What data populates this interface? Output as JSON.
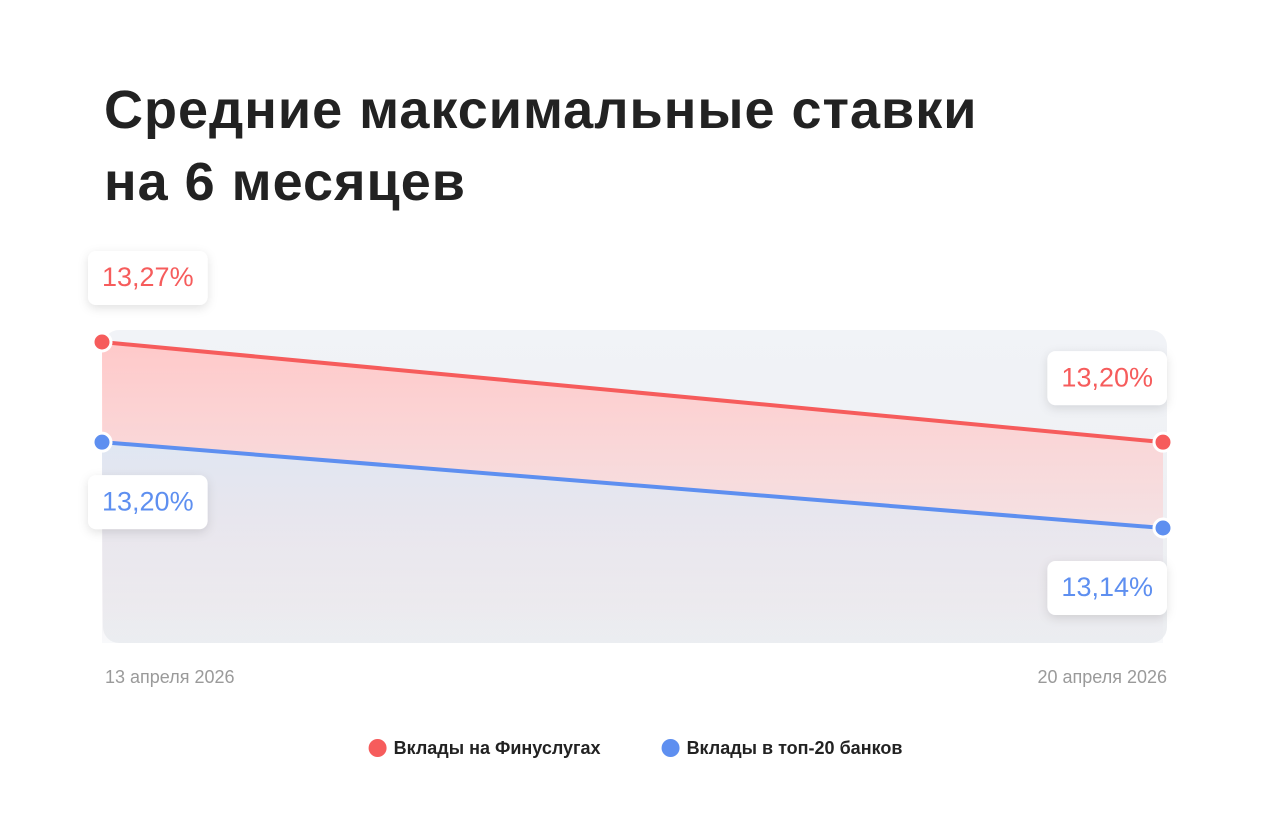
{
  "chart_data": {
    "type": "line",
    "title": "Средние максимальные ставки\nна 6 месяцев",
    "x": [
      "13 апреля 2026",
      "20 апреля 2026"
    ],
    "series": [
      {
        "name": "Вклады на Финуслугах",
        "color": "#f65c5c",
        "values": [
          13.27,
          13.2
        ],
        "value_labels": [
          "13,27%",
          "13,20%"
        ]
      },
      {
        "name": "Вклады в топ-20 банков",
        "color": "#5e8ff0",
        "values": [
          13.2,
          13.14
        ],
        "value_labels": [
          "13,20%",
          "13,14%"
        ]
      }
    ]
  }
}
